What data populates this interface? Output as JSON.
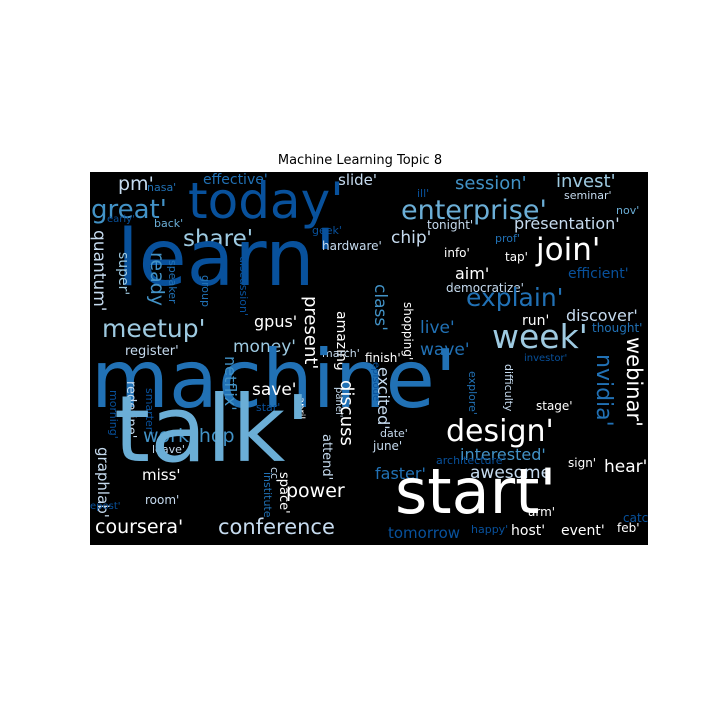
{
  "title": "Machine Learning Topic 8",
  "colors": {
    "background": "#000000",
    "palette": [
      "#08306b",
      "#08519c",
      "#2171b5",
      "#4292c6",
      "#6baed6",
      "#9ecae1",
      "#c6dbef",
      "#deebf7",
      "#ffffff"
    ]
  },
  "words": [
    "pm'",
    "nasa'",
    "effective'",
    "slide'",
    "session'",
    "invest'",
    "today'",
    "great'",
    "early'",
    "back'",
    "ill'",
    "seminar'",
    "nov'",
    "enterprise'",
    "share'",
    "geek'",
    "tonight'",
    "presentation'",
    "learn'",
    "quantum'",
    "ready",
    "super'",
    "speaker",
    "group",
    "discussion'",
    "hardware'",
    "chip'",
    "prof'",
    "info'",
    "tap'",
    "join'",
    "aim'",
    "efficient'",
    "democratize'",
    "explain'",
    "meetup'",
    "gpus'",
    "present'",
    "class'",
    "shopping'",
    "run'",
    "discover'",
    "thought'",
    "live'",
    "money'",
    "amazing'",
    "week'",
    "register'",
    "march'",
    "finish'",
    "wave'",
    "investor'",
    "machine'",
    "nvidia'",
    "webinar'",
    "save'",
    "april",
    "panel'",
    "episode'",
    "difficulty",
    "explore'",
    "stage'",
    "morning'",
    "redefine'",
    "star'",
    "netflix'",
    "smarter'",
    "discuss",
    "excited'",
    "date'",
    "design'",
    "workshop",
    "leave'",
    "cc'",
    "june'",
    "interested'",
    "sign'",
    "architecture'",
    "graphlab'",
    "miss'",
    "talk'",
    "power",
    "attend'",
    "faster'",
    "awesome",
    "hear'",
    "start'",
    "epost'",
    "room'",
    "institute",
    "space'",
    "catch'",
    "arm'",
    "coursera'",
    "conference",
    "tomorrow",
    "happy'",
    "host'",
    "event'",
    "feb'"
  ]
}
